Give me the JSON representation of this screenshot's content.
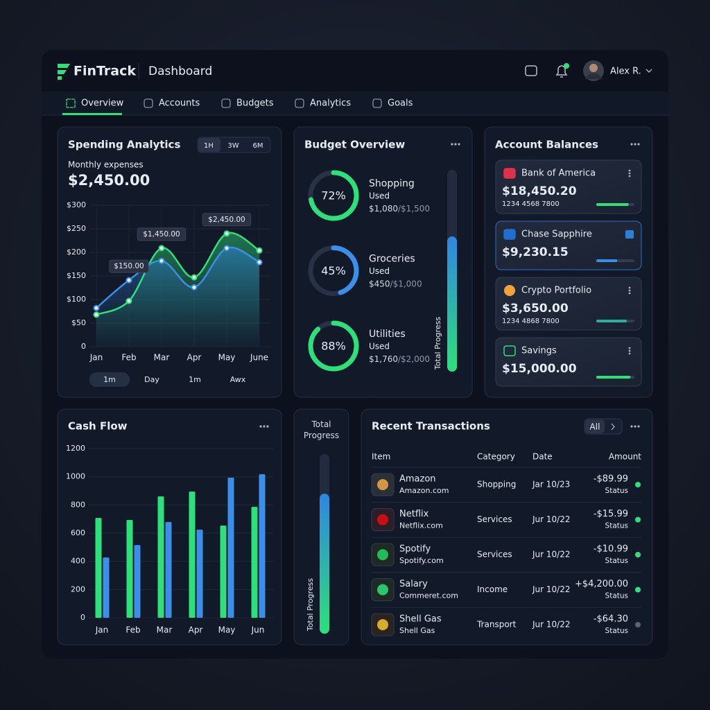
{
  "header": {
    "brand": "FinTrack",
    "page": "Dashboard",
    "user": "Alex R."
  },
  "nav": [
    "Overview",
    "Accounts",
    "Budgets",
    "Analytics",
    "Goals"
  ],
  "spending": {
    "title": "Spending Analytics",
    "ranges": [
      "1H",
      "3W",
      "6M"
    ],
    "subtitle": "Monthly expenses",
    "total": "$2,450.00",
    "periods": [
      "1m",
      "Day",
      "1m",
      "Awx"
    ]
  },
  "chart_data": [
    {
      "type": "line",
      "categories": [
        "Jan",
        "Feb",
        "Mar",
        "Apr",
        "May",
        "June"
      ],
      "series": [
        {
          "color": "#2ee07a",
          "values": [
            68,
            97,
            209,
            147,
            240,
            204
          ]
        },
        {
          "color": "#3b8fe8",
          "values": [
            82,
            141,
            182,
            126,
            209,
            179
          ]
        }
      ],
      "ylim": [
        0,
        300
      ],
      "yticks": [
        0,
        {
          "value": 50,
          "label": "$50"
        },
        {
          "value": 100,
          "label": "$100"
        },
        {
          "value": 150,
          "label": "$150"
        },
        {
          "value": 200,
          "label": "$200"
        },
        {
          "value": 250,
          "label": "$250"
        },
        {
          "value": 300,
          "label": "$300"
        }
      ],
      "annotations": [
        {
          "text": "$150.00",
          "category": "Feb"
        },
        {
          "text": "$1,450.00",
          "category": "Mar"
        },
        {
          "text": "$2,450.00",
          "category": "May"
        }
      ],
      "grid": true
    },
    {
      "type": "bar",
      "title": "Cash Flow",
      "categories": [
        "Jan",
        "Feb",
        "Mar",
        "Apr",
        "May",
        "Jun"
      ],
      "series": [
        {
          "color": "#2ee07a",
          "values": [
            708,
            694,
            861,
            895,
            654,
            787
          ]
        },
        {
          "color": "#3b8fe8",
          "values": [
            428,
            516,
            679,
            625,
            994,
            1018
          ]
        }
      ],
      "ylim": [
        0,
        1200
      ],
      "yticks": [
        0,
        200,
        400,
        600,
        800,
        1000,
        1200
      ],
      "grid": true
    }
  ],
  "budget": {
    "title": "Budget Overview",
    "progress_label": "Total Progress",
    "progress": 67,
    "items": [
      {
        "name": "Shopping",
        "used": "Used",
        "amount": "$1,080",
        "limit": "/$1,500",
        "percent": 72,
        "percent_label": "72%",
        "color": "#2ee07a"
      },
      {
        "name": "Groceries",
        "used": "Used",
        "amount": "$450",
        "limit": "/$1,000",
        "percent": 45,
        "percent_label": "45%",
        "color": "#3b8fe8"
      },
      {
        "name": "Utilities",
        "used": "Used",
        "amount": "$1,760",
        "limit": "/$2,000",
        "percent": 88,
        "percent_label": "88%",
        "color": "#2ee07a"
      }
    ]
  },
  "accounts": {
    "title": "Account Balances",
    "items": [
      {
        "name": "Bank of America",
        "balance": "$18,450.20",
        "number": "1234 4568 7800",
        "progress": 85,
        "color": "#2ee07a"
      },
      {
        "name": "Chase Sapphire",
        "balance": "$9,230.15",
        "progress": 55,
        "color": "#3b8fe8"
      },
      {
        "name": "Crypto Portfolio",
        "balance": "$3,650.00",
        "number": "1234 4868 7800",
        "progress": 80,
        "color": "#2bb0a0"
      },
      {
        "name": "Savings",
        "balance": "$15,000.00",
        "progress": 90,
        "color": "#2ee07a"
      }
    ]
  },
  "total_progress": {
    "title": "Total Progress",
    "label": "Total Progress",
    "progress": 78
  },
  "transactions": {
    "title": "Recent Transactions",
    "filter": "All",
    "columns": [
      "Item",
      "Category",
      "Date",
      "Amount"
    ],
    "rows": [
      {
        "item": "Amazon",
        "site": "Amazon.com",
        "category": "Shopping",
        "date": "Jar 10/23",
        "amount": "-$89.99",
        "status": "Status",
        "amount_color": "#f47c8a",
        "status_color": "#2ee07a"
      },
      {
        "item": "Netflix",
        "site": "Netflix.com",
        "category": "Services",
        "date": "Jur 10/22",
        "amount": "-$15.99",
        "status": "Status",
        "amount_color": "#f47c8a",
        "status_color": "#2ee07a"
      },
      {
        "item": "Spotify",
        "site": "Spotify.com",
        "category": "Services",
        "date": "Jur 10/22",
        "amount": "-$10.99",
        "status": "Status",
        "amount_color": "#f47c8a",
        "status_color": "#2ee07a"
      },
      {
        "item": "Salary",
        "site": "Commeret.com",
        "category": "Income",
        "date": "Jur 10/22",
        "amount": "+$4,200.00",
        "status": "Status",
        "amount_color": "#2ee07a",
        "status_color": "#2ee07a"
      },
      {
        "item": "Shell Gas",
        "site": "Shell Gas",
        "category": "Transport",
        "date": "Jur 10/22",
        "amount": "-$64.30",
        "status": "Status",
        "amount_color": "#f47c8a",
        "status_color": "#5b6476"
      }
    ]
  }
}
